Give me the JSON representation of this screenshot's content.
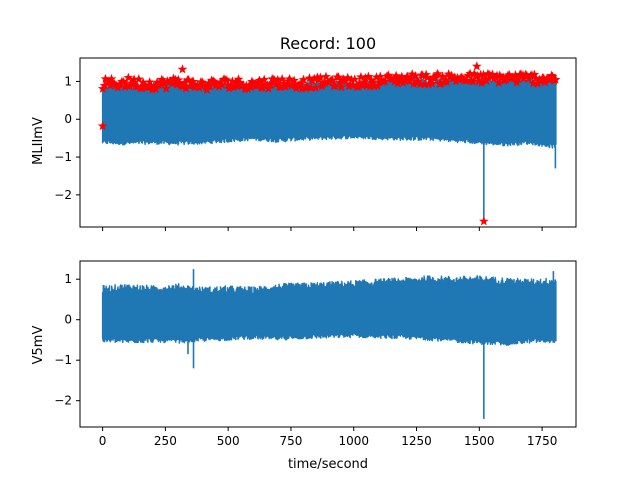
{
  "figure": {
    "title": "Record: 100",
    "xlabel": "time/second"
  },
  "chart_data": [
    {
      "type": "line",
      "ylabel": "MLIImV",
      "xlim": [
        -90,
        1885
      ],
      "ylim": [
        -2.85,
        1.62
      ],
      "xticks": [
        0,
        250,
        500,
        750,
        1000,
        1250,
        1500,
        1750
      ],
      "xtick_labels_visible": false,
      "yticks": [
        1,
        0,
        -1,
        -2
      ],
      "ytick_labels": [
        "1",
        "0",
        "−1",
        "−2"
      ],
      "grid": false,
      "series": [
        {
          "kind": "band",
          "color": "#1f77b4",
          "x_range": [
            0,
            1805
          ],
          "upper": [
            [
              0,
              0.82
            ],
            [
              100,
              0.9
            ],
            [
              200,
              0.88
            ],
            [
              300,
              0.92
            ],
            [
              400,
              0.86
            ],
            [
              500,
              0.9
            ],
            [
              600,
              0.9
            ],
            [
              700,
              0.92
            ],
            [
              800,
              0.9
            ],
            [
              900,
              0.95
            ],
            [
              1000,
              0.92
            ],
            [
              1100,
              0.98
            ],
            [
              1200,
              1.02
            ],
            [
              1300,
              1.0
            ],
            [
              1400,
              1.05
            ],
            [
              1500,
              1.0
            ],
            [
              1600,
              1.05
            ],
            [
              1700,
              1.0
            ],
            [
              1805,
              1.05
            ]
          ],
          "lower": [
            [
              0,
              -0.6
            ],
            [
              100,
              -0.62
            ],
            [
              200,
              -0.6
            ],
            [
              300,
              -0.62
            ],
            [
              400,
              -0.6
            ],
            [
              500,
              -0.55
            ],
            [
              600,
              -0.5
            ],
            [
              700,
              -0.55
            ],
            [
              800,
              -0.5
            ],
            [
              900,
              -0.48
            ],
            [
              1000,
              -0.45
            ],
            [
              1100,
              -0.48
            ],
            [
              1200,
              -0.5
            ],
            [
              1300,
              -0.5
            ],
            [
              1400,
              -0.55
            ],
            [
              1500,
              -0.6
            ],
            [
              1600,
              -0.65
            ],
            [
              1700,
              -0.6
            ],
            [
              1805,
              -0.72
            ]
          ],
          "spikes": [
            [
              1518,
              -2.7
            ],
            [
              1803,
              -1.3
            ]
          ]
        },
        {
          "kind": "markers",
          "marker": "star",
          "color": "#ff0000",
          "peaks_band": [
            [
              0,
              0.95
            ],
            [
              100,
              1.0
            ],
            [
              200,
              0.95
            ],
            [
              300,
              1.0
            ],
            [
              400,
              0.92
            ],
            [
              500,
              0.98
            ],
            [
              600,
              0.95
            ],
            [
              700,
              1.0
            ],
            [
              800,
              0.97
            ],
            [
              900,
              1.02
            ],
            [
              1000,
              1.0
            ],
            [
              1100,
              1.05
            ],
            [
              1200,
              1.1
            ],
            [
              1300,
              1.08
            ],
            [
              1400,
              1.12
            ],
            [
              1500,
              1.1
            ],
            [
              1600,
              1.12
            ],
            [
              1700,
              1.1
            ],
            [
              1805,
              1.12
            ]
          ],
          "points": [
            [
              0,
              -0.18
            ],
            [
              318,
              1.32
            ],
            [
              1518,
              -2.7
            ],
            [
              1490,
              1.4
            ]
          ]
        }
      ]
    },
    {
      "type": "line",
      "ylabel": "V5mV",
      "xlim": [
        -90,
        1885
      ],
      "ylim": [
        -2.65,
        1.45
      ],
      "xticks": [
        0,
        250,
        500,
        750,
        1000,
        1250,
        1500,
        1750
      ],
      "xtick_labels": [
        "0",
        "250",
        "500",
        "750",
        "1000",
        "1250",
        "1500",
        "1750"
      ],
      "yticks": [
        1,
        0,
        -1,
        -2
      ],
      "ytick_labels": [
        "1",
        "0",
        "−1",
        "−2"
      ],
      "grid": false,
      "series": [
        {
          "kind": "band",
          "color": "#1f77b4",
          "x_range": [
            0,
            1805
          ],
          "upper": [
            [
              0,
              0.75
            ],
            [
              100,
              0.8
            ],
            [
              200,
              0.75
            ],
            [
              300,
              0.8
            ],
            [
              400,
              0.72
            ],
            [
              500,
              0.75
            ],
            [
              600,
              0.72
            ],
            [
              700,
              0.8
            ],
            [
              800,
              0.82
            ],
            [
              900,
              0.85
            ],
            [
              1000,
              0.88
            ],
            [
              1100,
              0.92
            ],
            [
              1200,
              0.95
            ],
            [
              1300,
              1.0
            ],
            [
              1400,
              0.98
            ],
            [
              1500,
              1.0
            ],
            [
              1600,
              0.95
            ],
            [
              1700,
              0.92
            ],
            [
              1805,
              0.95
            ]
          ],
          "lower": [
            [
              0,
              -0.5
            ],
            [
              100,
              -0.52
            ],
            [
              200,
              -0.5
            ],
            [
              300,
              -0.52
            ],
            [
              400,
              -0.48
            ],
            [
              500,
              -0.45
            ],
            [
              600,
              -0.42
            ],
            [
              700,
              -0.45
            ],
            [
              800,
              -0.42
            ],
            [
              900,
              -0.4
            ],
            [
              1000,
              -0.38
            ],
            [
              1100,
              -0.4
            ],
            [
              1200,
              -0.42
            ],
            [
              1300,
              -0.45
            ],
            [
              1400,
              -0.5
            ],
            [
              1500,
              -0.55
            ],
            [
              1600,
              -0.58
            ],
            [
              1700,
              -0.52
            ],
            [
              1805,
              -0.5
            ]
          ],
          "spikes": [
            [
              362,
              1.25
            ],
            [
              362,
              -1.2
            ],
            [
              1518,
              -2.45
            ],
            [
              1795,
              1.2
            ],
            [
              340,
              -0.85
            ]
          ]
        }
      ]
    }
  ]
}
